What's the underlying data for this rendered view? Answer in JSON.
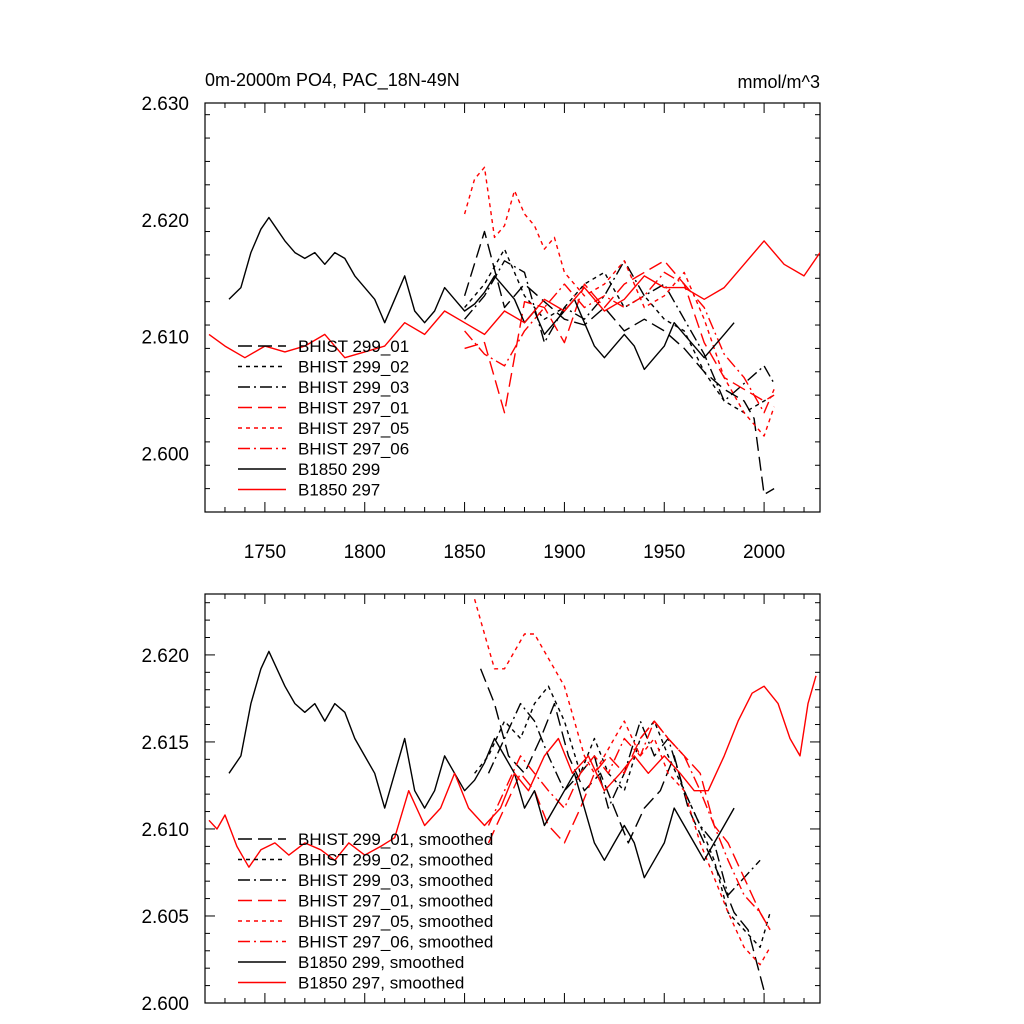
{
  "chart_data": [
    {
      "type": "line",
      "title": "0m-2000m PO4, PAC_18N-49N",
      "units": "mmol/m^3",
      "xlim": [
        1720,
        2028
      ],
      "ylim": [
        2.595,
        2.63
      ],
      "xticks": [
        1750,
        1800,
        1850,
        1900,
        1950,
        2000
      ],
      "xtick_labels": [
        "1750",
        "1800",
        "1850",
        "1900",
        "1950",
        "2000"
      ],
      "yticks": [
        2.6,
        2.61,
        2.62,
        2.63
      ],
      "ytick_labels": [
        "2.600",
        "2.610",
        "2.620",
        "2.630"
      ],
      "legend_placement": "lower-left",
      "series": [
        {
          "name": "BHIST 299_01",
          "color": "#000000",
          "dash": "longdash",
          "x": [
            1850,
            1860,
            1870,
            1880,
            1890,
            1900,
            1910,
            1920,
            1930,
            1940,
            1950,
            1960,
            1970,
            1980,
            1985,
            1990,
            1995,
            2000,
            2005
          ],
          "y": [
            2.6135,
            2.619,
            2.6125,
            2.6145,
            2.613,
            2.6115,
            2.611,
            2.6125,
            2.6105,
            2.6115,
            2.6105,
            2.609,
            2.607,
            2.6055,
            2.605,
            2.6045,
            2.603,
            2.5965,
            2.597
          ]
        },
        {
          "name": "BHIST 299_02",
          "color": "#000000",
          "dash": "shortdash",
          "x": [
            1850,
            1860,
            1870,
            1880,
            1890,
            1900,
            1910,
            1920,
            1930,
            1940,
            1950,
            1960,
            1970,
            1980,
            1990,
            2000,
            2005
          ],
          "y": [
            2.6125,
            2.6145,
            2.6175,
            2.6135,
            2.6115,
            2.6125,
            2.6145,
            2.6155,
            2.6125,
            2.6135,
            2.6115,
            2.6105,
            2.607,
            2.6045,
            2.6035,
            2.6045,
            2.605
          ]
        },
        {
          "name": "BHIST 299_03",
          "color": "#000000",
          "dash": "dashdot",
          "x": [
            1850,
            1860,
            1870,
            1880,
            1890,
            1900,
            1910,
            1920,
            1930,
            1940,
            1950,
            1960,
            1970,
            1980,
            1990,
            2000,
            2005
          ],
          "y": [
            2.6115,
            2.6135,
            2.6165,
            2.6155,
            2.6095,
            2.6125,
            2.6115,
            2.6135,
            2.6165,
            2.6135,
            2.6145,
            2.6115,
            2.6085,
            2.6045,
            2.606,
            2.6075,
            2.606
          ]
        },
        {
          "name": "BHIST 297_01",
          "color": "#ff0000",
          "dash": "longdash",
          "x": [
            1850,
            1860,
            1870,
            1880,
            1890,
            1900,
            1910,
            1920,
            1930,
            1940,
            1950,
            1960,
            1970,
            1980,
            1990,
            2000,
            2005
          ],
          "y": [
            2.609,
            2.6095,
            2.6035,
            2.613,
            2.6125,
            2.6095,
            2.6145,
            2.6125,
            2.6145,
            2.6155,
            2.6165,
            2.6145,
            2.6095,
            2.6065,
            2.6055,
            2.6045,
            2.605
          ]
        },
        {
          "name": "BHIST 297_05",
          "color": "#ff0000",
          "dash": "shortdash",
          "x": [
            1850,
            1855,
            1860,
            1865,
            1870,
            1875,
            1880,
            1885,
            1890,
            1895,
            1900,
            1910,
            1920,
            1930,
            1940,
            1950,
            1960,
            1970,
            1980,
            1990,
            2000,
            2005
          ],
          "y": [
            2.6205,
            2.6235,
            2.6245,
            2.6185,
            2.6195,
            2.6225,
            2.6205,
            2.6195,
            2.6175,
            2.6185,
            2.6155,
            2.6135,
            2.6145,
            2.6165,
            2.6125,
            2.6135,
            2.6155,
            2.6115,
            2.6065,
            2.6035,
            2.6015,
            2.604
          ]
        },
        {
          "name": "BHIST 297_06",
          "color": "#ff0000",
          "dash": "dashdot",
          "x": [
            1850,
            1860,
            1870,
            1880,
            1890,
            1900,
            1910,
            1920,
            1930,
            1940,
            1950,
            1960,
            1970,
            1980,
            1990,
            2000,
            2005
          ],
          "y": [
            2.6105,
            2.6085,
            2.6075,
            2.6105,
            2.6125,
            2.6145,
            2.6125,
            2.6135,
            2.6125,
            2.6135,
            2.6155,
            2.6145,
            2.6125,
            2.6085,
            2.6065,
            2.6035,
            2.6055
          ]
        },
        {
          "name": "B1850 299",
          "color": "#000000",
          "dash": "solid",
          "x": [
            1732,
            1738,
            1743,
            1748,
            1752,
            1756,
            1760,
            1765,
            1770,
            1775,
            1780,
            1785,
            1790,
            1795,
            1800,
            1805,
            1810,
            1815,
            1820,
            1825,
            1830,
            1835,
            1840,
            1845,
            1850,
            1855,
            1860,
            1865,
            1870,
            1875,
            1880,
            1885,
            1890,
            1895,
            1900,
            1905,
            1910,
            1915,
            1920,
            1925,
            1930,
            1935,
            1940,
            1945,
            1950,
            1955,
            1960,
            1965,
            1970,
            1975,
            1980,
            1985
          ],
          "y": [
            2.6132,
            2.6142,
            2.6172,
            2.6192,
            2.6202,
            2.6192,
            2.6182,
            2.6172,
            2.6167,
            2.6172,
            2.6162,
            2.6172,
            2.6167,
            2.6152,
            2.6142,
            2.6132,
            2.6112,
            2.6132,
            2.6152,
            2.6122,
            2.6112,
            2.6122,
            2.6142,
            2.6132,
            2.6122,
            2.6128,
            2.6138,
            2.6152,
            2.6142,
            2.6132,
            2.6112,
            2.6122,
            2.6102,
            2.6112,
            2.6122,
            2.6132,
            2.6112,
            2.6092,
            2.6082,
            2.6092,
            2.6102,
            2.6092,
            2.6072,
            2.6082,
            2.6092,
            2.6112,
            2.6102,
            2.6092,
            2.6082,
            2.6092,
            2.6102,
            2.6112
          ]
        },
        {
          "name": "B1850 297",
          "color": "#ff0000",
          "dash": "solid",
          "x": [
            1722,
            1730,
            1740,
            1750,
            1760,
            1770,
            1780,
            1790,
            1800,
            1810,
            1820,
            1830,
            1840,
            1850,
            1860,
            1870,
            1880,
            1890,
            1900,
            1910,
            1920,
            1930,
            1940,
            1950,
            1960,
            1970,
            1980,
            1990,
            2000,
            2010,
            2020,
            2028
          ],
          "y": [
            2.6102,
            2.6092,
            2.6082,
            2.6092,
            2.6087,
            2.6092,
            2.6102,
            2.6082,
            2.6087,
            2.6092,
            2.6112,
            2.6102,
            2.6122,
            2.6112,
            2.6102,
            2.6122,
            2.6112,
            2.6132,
            2.6122,
            2.6142,
            2.6122,
            2.6132,
            2.6152,
            2.6142,
            2.6142,
            2.6132,
            2.6142,
            2.6162,
            2.6182,
            2.6162,
            2.6152,
            2.6172
          ]
        }
      ]
    },
    {
      "type": "line",
      "xlim": [
        1720,
        2028
      ],
      "ylim": [
        2.6,
        2.6235
      ],
      "xticks": [
        1750,
        1800,
        1850,
        1900,
        1950,
        2000
      ],
      "yticks": [
        2.6,
        2.605,
        2.61,
        2.615,
        2.62
      ],
      "ytick_labels": [
        "2.600",
        "2.605",
        "2.610",
        "2.615",
        "2.620"
      ],
      "legend_placement": "lower-left",
      "series": [
        {
          "name": "BHIST 299_01, smoothed",
          "color": "#000000",
          "dash": "longdash",
          "x": [
            1858,
            1865,
            1872,
            1880,
            1888,
            1895,
            1902,
            1910,
            1918,
            1925,
            1932,
            1940,
            1948,
            1955,
            1962,
            1970,
            1978,
            1985,
            1992,
            2000
          ],
          "y": [
            2.6192,
            2.6172,
            2.6142,
            2.6132,
            2.6152,
            2.6172,
            2.6142,
            2.6122,
            2.6132,
            2.6112,
            2.6092,
            2.6112,
            2.6122,
            2.6142,
            2.6112,
            2.6092,
            2.6072,
            2.6052,
            2.6042,
            2.6007
          ]
        },
        {
          "name": "BHIST 299_02, smoothed",
          "color": "#000000",
          "dash": "shortdash",
          "x": [
            1855,
            1862,
            1870,
            1878,
            1885,
            1892,
            1900,
            1908,
            1915,
            1922,
            1930,
            1938,
            1945,
            1952,
            1960,
            1968,
            1975,
            1982,
            1990,
            1998,
            2003
          ],
          "y": [
            2.6132,
            2.6142,
            2.6162,
            2.6152,
            2.6172,
            2.6182,
            2.6162,
            2.6132,
            2.6152,
            2.6132,
            2.6122,
            2.6152,
            2.6162,
            2.6142,
            2.6122,
            2.6102,
            2.6082,
            2.6052,
            2.6042,
            2.6032,
            2.6052
          ]
        },
        {
          "name": "BHIST 299_03, smoothed",
          "color": "#000000",
          "dash": "dashdot",
          "x": [
            1862,
            1870,
            1878,
            1885,
            1892,
            1900,
            1908,
            1915,
            1922,
            1930,
            1938,
            1945,
            1952,
            1960,
            1968,
            1975,
            1982,
            1990,
            1998
          ],
          "y": [
            2.6132,
            2.6152,
            2.6172,
            2.6162,
            2.6142,
            2.6122,
            2.6132,
            2.6142,
            2.6112,
            2.6132,
            2.6162,
            2.6142,
            2.6152,
            2.6122,
            2.6102,
            2.6092,
            2.6062,
            2.6072,
            2.6082
          ]
        },
        {
          "name": "BHIST 297_01, smoothed",
          "color": "#ff0000",
          "dash": "longdash",
          "x": [
            1862,
            1870,
            1878,
            1885,
            1892,
            1900,
            1908,
            1915,
            1922,
            1930,
            1938,
            1945,
            1952,
            1960,
            1968,
            1975,
            1982,
            1990,
            1998,
            2003
          ],
          "y": [
            2.6092,
            2.6112,
            2.6132,
            2.6122,
            2.6102,
            2.6092,
            2.6112,
            2.6132,
            2.6142,
            2.6132,
            2.6152,
            2.6162,
            2.6152,
            2.6142,
            2.6132,
            2.6102,
            2.6092,
            2.6072,
            2.6052,
            2.6042
          ]
        },
        {
          "name": "BHIST 297_05, smoothed",
          "color": "#ff0000",
          "dash": "shortdash",
          "x": [
            1855,
            1860,
            1865,
            1870,
            1875,
            1880,
            1885,
            1890,
            1895,
            1900,
            1905,
            1910,
            1915,
            1920,
            1925,
            1930,
            1938,
            1945,
            1952,
            1960,
            1968,
            1975,
            1982,
            1990,
            1998,
            2003
          ],
          "y": [
            2.6232,
            2.6212,
            2.6192,
            2.6192,
            2.6202,
            2.6212,
            2.6212,
            2.6202,
            2.6192,
            2.6182,
            2.6162,
            2.6142,
            2.6132,
            2.6142,
            2.6152,
            2.6162,
            2.6142,
            2.6152,
            2.6132,
            2.6122,
            2.6092,
            2.6072,
            2.6052,
            2.6032,
            2.6022,
            2.6032
          ]
        },
        {
          "name": "BHIST 297_06, smoothed",
          "color": "#ff0000",
          "dash": "dashdot",
          "x": [
            1862,
            1870,
            1878,
            1885,
            1892,
            1900,
            1908,
            1915,
            1922,
            1930,
            1938,
            1945,
            1952,
            1960,
            1968,
            1975,
            1982,
            1990,
            1998,
            2003
          ],
          "y": [
            2.6102,
            2.6122,
            2.6142,
            2.6132,
            2.6122,
            2.6112,
            2.6132,
            2.6142,
            2.6132,
            2.6152,
            2.6142,
            2.6162,
            2.6152,
            2.6142,
            2.6122,
            2.6102,
            2.6082,
            2.6062,
            2.6052,
            2.6042
          ]
        },
        {
          "name": "B1850 299, smoothed",
          "color": "#000000",
          "dash": "solid",
          "x": [
            1732,
            1738,
            1743,
            1748,
            1752,
            1756,
            1760,
            1765,
            1770,
            1775,
            1780,
            1785,
            1790,
            1795,
            1800,
            1805,
            1810,
            1815,
            1820,
            1825,
            1830,
            1835,
            1840,
            1845,
            1850,
            1855,
            1860,
            1865,
            1870,
            1875,
            1880,
            1885,
            1890,
            1895,
            1900,
            1905,
            1910,
            1915,
            1920,
            1925,
            1930,
            1935,
            1940,
            1945,
            1950,
            1955,
            1960,
            1965,
            1970,
            1975,
            1980,
            1985
          ],
          "y": [
            2.6132,
            2.6142,
            2.6172,
            2.6192,
            2.6202,
            2.6192,
            2.6182,
            2.6172,
            2.6167,
            2.6172,
            2.6162,
            2.6172,
            2.6167,
            2.6152,
            2.6142,
            2.6132,
            2.6112,
            2.6132,
            2.6152,
            2.6122,
            2.6112,
            2.6122,
            2.6142,
            2.6132,
            2.6122,
            2.6128,
            2.6138,
            2.6152,
            2.6142,
            2.6132,
            2.6112,
            2.6122,
            2.6102,
            2.6112,
            2.6122,
            2.6132,
            2.6112,
            2.6092,
            2.6082,
            2.6092,
            2.6102,
            2.6092,
            2.6072,
            2.6082,
            2.6092,
            2.6112,
            2.6102,
            2.6092,
            2.6082,
            2.6092,
            2.6102,
            2.6112
          ]
        },
        {
          "name": "B1850 297, smoothed",
          "color": "#ff0000",
          "dash": "solid",
          "x": [
            1722,
            1726,
            1730,
            1736,
            1742,
            1748,
            1755,
            1762,
            1770,
            1778,
            1785,
            1792,
            1800,
            1808,
            1815,
            1822,
            1830,
            1838,
            1845,
            1852,
            1860,
            1868,
            1875,
            1882,
            1890,
            1897,
            1904,
            1912,
            1920,
            1928,
            1935,
            1942,
            1950,
            1958,
            1965,
            1972,
            1980,
            1987,
            1994,
            2000,
            2007,
            2013,
            2018,
            2022,
            2026
          ],
          "y": [
            2.6105,
            2.61,
            2.6108,
            2.609,
            2.6078,
            2.6088,
            2.6092,
            2.6085,
            2.6092,
            2.6088,
            2.6082,
            2.6092,
            2.6085,
            2.609,
            2.6095,
            2.6122,
            2.6102,
            2.6112,
            2.6132,
            2.6112,
            2.6102,
            2.6112,
            2.6132,
            2.6122,
            2.6142,
            2.6152,
            2.6132,
            2.6142,
            2.6122,
            2.6132,
            2.6142,
            2.6132,
            2.6142,
            2.6132,
            2.6122,
            2.6122,
            2.6142,
            2.6162,
            2.6178,
            2.6182,
            2.6172,
            2.6152,
            2.6142,
            2.6172,
            2.6188
          ]
        }
      ]
    }
  ]
}
